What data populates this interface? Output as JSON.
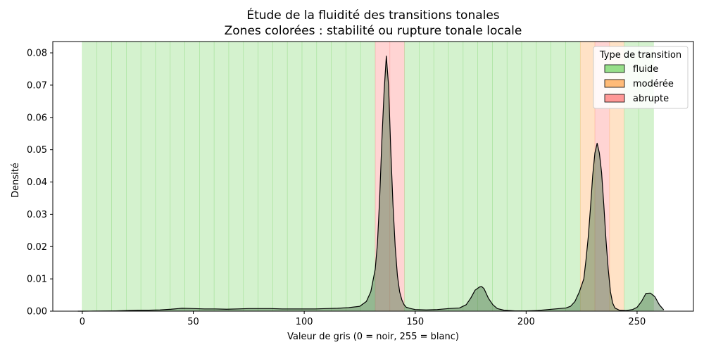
{
  "chart_data": {
    "type": "area",
    "title": "Étude de la fluidité des transitions tonales",
    "subtitle": "Zones colorées : stabilité ou rupture tonale locale",
    "xlabel": "Valeur de gris (0 = noir, 255 = blanc)",
    "ylabel": "Densité",
    "xlim": [
      -13.3,
      275.4
    ],
    "ylim": [
      0,
      0.0835
    ],
    "x_ticks": [
      0,
      50,
      100,
      150,
      200,
      250
    ],
    "y_ticks": [
      0.0,
      0.01,
      0.02,
      0.03,
      0.04,
      0.05,
      0.06,
      0.07,
      0.08
    ],
    "x_tick_labels": [
      "0",
      "50",
      "100",
      "150",
      "200",
      "250"
    ],
    "y_tick_labels": [
      "0.00",
      "0.01",
      "0.02",
      "0.03",
      "0.04",
      "0.05",
      "0.06",
      "0.07",
      "0.08"
    ],
    "grid": false,
    "legend": {
      "title": "Type de transition",
      "placement": "top-right",
      "entries": [
        {
          "label": "fluide",
          "color": "#98df8a"
        },
        {
          "label": "modérée",
          "color": "#ffbb78"
        },
        {
          "label": "abrupte",
          "color": "#ff9896"
        }
      ]
    },
    "zone_colors": {
      "fluide": "#98df8a",
      "modérée": "#ffbb78",
      "abrupte": "#ff9896"
    },
    "zones": [
      {
        "start": 0,
        "end": 6.6,
        "type": "fluide"
      },
      {
        "start": 6.6,
        "end": 13.2,
        "type": "fluide"
      },
      {
        "start": 13.2,
        "end": 19.8,
        "type": "fluide"
      },
      {
        "start": 19.8,
        "end": 26.4,
        "type": "fluide"
      },
      {
        "start": 26.4,
        "end": 33.0,
        "type": "fluide"
      },
      {
        "start": 33.0,
        "end": 39.6,
        "type": "fluide"
      },
      {
        "start": 39.6,
        "end": 46.2,
        "type": "fluide"
      },
      {
        "start": 46.2,
        "end": 52.8,
        "type": "fluide"
      },
      {
        "start": 52.8,
        "end": 59.4,
        "type": "fluide"
      },
      {
        "start": 59.4,
        "end": 66.0,
        "type": "fluide"
      },
      {
        "start": 66.0,
        "end": 72.6,
        "type": "fluide"
      },
      {
        "start": 72.6,
        "end": 79.2,
        "type": "fluide"
      },
      {
        "start": 79.2,
        "end": 85.8,
        "type": "fluide"
      },
      {
        "start": 85.8,
        "end": 92.4,
        "type": "fluide"
      },
      {
        "start": 92.4,
        "end": 99.0,
        "type": "fluide"
      },
      {
        "start": 99.0,
        "end": 105.6,
        "type": "fluide"
      },
      {
        "start": 105.6,
        "end": 112.2,
        "type": "fluide"
      },
      {
        "start": 112.2,
        "end": 118.8,
        "type": "fluide"
      },
      {
        "start": 118.8,
        "end": 125.4,
        "type": "fluide"
      },
      {
        "start": 125.4,
        "end": 132.0,
        "type": "fluide"
      },
      {
        "start": 132.0,
        "end": 138.6,
        "type": "abrupte"
      },
      {
        "start": 138.6,
        "end": 145.2,
        "type": "abrupte"
      },
      {
        "start": 145.2,
        "end": 151.8,
        "type": "fluide"
      },
      {
        "start": 151.8,
        "end": 158.4,
        "type": "fluide"
      },
      {
        "start": 158.4,
        "end": 165.0,
        "type": "fluide"
      },
      {
        "start": 165.0,
        "end": 171.6,
        "type": "fluide"
      },
      {
        "start": 171.6,
        "end": 178.2,
        "type": "fluide"
      },
      {
        "start": 178.2,
        "end": 184.8,
        "type": "fluide"
      },
      {
        "start": 184.8,
        "end": 191.4,
        "type": "fluide"
      },
      {
        "start": 191.4,
        "end": 198.0,
        "type": "fluide"
      },
      {
        "start": 198.0,
        "end": 204.6,
        "type": "fluide"
      },
      {
        "start": 204.6,
        "end": 211.2,
        "type": "fluide"
      },
      {
        "start": 211.2,
        "end": 217.8,
        "type": "fluide"
      },
      {
        "start": 217.8,
        "end": 224.4,
        "type": "fluide"
      },
      {
        "start": 224.4,
        "end": 231.0,
        "type": "modérée"
      },
      {
        "start": 231.0,
        "end": 237.6,
        "type": "abrupte"
      },
      {
        "start": 237.6,
        "end": 244.2,
        "type": "modérée"
      },
      {
        "start": 244.2,
        "end": 250.8,
        "type": "fluide"
      },
      {
        "start": 250.8,
        "end": 257.4,
        "type": "fluide"
      }
    ],
    "series": [
      {
        "x": [
          -2,
          0,
          5,
          10,
          15,
          20,
          25,
          30,
          35,
          40,
          45,
          50,
          55,
          60,
          65,
          70,
          75,
          80,
          85,
          90,
          95,
          100,
          105,
          110,
          115,
          120,
          125,
          128,
          130,
          132,
          133,
          134,
          135,
          136,
          137,
          138,
          139,
          140,
          141,
          142,
          143,
          144,
          145,
          146,
          148,
          150,
          155,
          160,
          165,
          170,
          173,
          175,
          177,
          179,
          180,
          181,
          183,
          185,
          187,
          190,
          195,
          200,
          205,
          210,
          215,
          218,
          220,
          222,
          224,
          226,
          227,
          228,
          229,
          230,
          231,
          232,
          233,
          234,
          235,
          236,
          237,
          238,
          239,
          240,
          242,
          245,
          248,
          250,
          252,
          254,
          256,
          258,
          260,
          262
        ],
        "y": [
          0.0,
          0.0,
          2e-05,
          5e-05,
          0.0001,
          0.0002,
          0.0003,
          0.0003,
          0.0004,
          0.0006,
          0.0009,
          0.0008,
          0.0007,
          0.0007,
          0.0006,
          0.0007,
          0.0008,
          0.0008,
          0.0008,
          0.0007,
          0.0007,
          0.0007,
          0.0007,
          0.0008,
          0.0009,
          0.0011,
          0.0015,
          0.003,
          0.006,
          0.013,
          0.021,
          0.035,
          0.053,
          0.068,
          0.079,
          0.07,
          0.05,
          0.033,
          0.02,
          0.011,
          0.006,
          0.0035,
          0.002,
          0.0012,
          0.0008,
          0.0005,
          0.0004,
          0.0005,
          0.0008,
          0.001,
          0.002,
          0.004,
          0.0065,
          0.0075,
          0.0076,
          0.007,
          0.004,
          0.002,
          0.0008,
          0.0003,
          0.0001,
          0.0001,
          0.0002,
          0.0005,
          0.0008,
          0.001,
          0.0015,
          0.003,
          0.006,
          0.01,
          0.016,
          0.023,
          0.032,
          0.042,
          0.049,
          0.052,
          0.049,
          0.043,
          0.033,
          0.022,
          0.013,
          0.006,
          0.0025,
          0.001,
          0.0003,
          0.0002,
          0.0005,
          0.0012,
          0.003,
          0.0055,
          0.0056,
          0.0045,
          0.002,
          0.0004
        ]
      }
    ]
  }
}
